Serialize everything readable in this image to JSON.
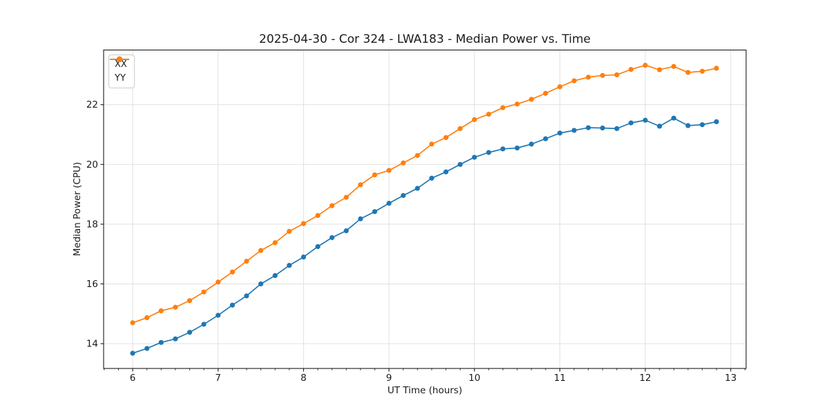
{
  "figure": {
    "background": "#ffffff",
    "spine_color": "#1a1a1a",
    "grid_color": "#e0e0e0",
    "tick_color": "#1a1a1a",
    "text_color": "#1a1a1a"
  },
  "chart_data": {
    "type": "line",
    "title": "2025-04-30 - Cor 324 - LWA183 - Median Power vs. Time",
    "xlabel": "UT Time (hours)",
    "ylabel": "Median Power (CPU)",
    "xlim": [
      5.66,
      13.18
    ],
    "ylim": [
      13.17,
      23.83
    ],
    "xticks": [
      6,
      7,
      8,
      9,
      10,
      11,
      12,
      13
    ],
    "yticks": [
      14,
      16,
      18,
      20,
      22
    ],
    "x_minor_step": 0.16667,
    "grid": true,
    "legend_position": "upper-left",
    "marker": "circle",
    "x": [
      6.0,
      6.167,
      6.333,
      6.5,
      6.667,
      6.833,
      7.0,
      7.167,
      7.333,
      7.5,
      7.667,
      7.833,
      8.0,
      8.167,
      8.333,
      8.5,
      8.667,
      8.833,
      9.0,
      9.167,
      9.333,
      9.5,
      9.667,
      9.833,
      10.0,
      10.167,
      10.333,
      10.5,
      10.667,
      10.833,
      11.0,
      11.167,
      11.333,
      11.5,
      11.667,
      11.833,
      12.0,
      12.167,
      12.333,
      12.5,
      12.667,
      12.833
    ],
    "series": [
      {
        "name": "XX",
        "color": "#1f77b4",
        "values": [
          13.68,
          13.84,
          14.04,
          14.16,
          14.38,
          14.65,
          14.95,
          15.29,
          15.6,
          16.0,
          16.28,
          16.62,
          16.9,
          17.25,
          17.55,
          17.78,
          18.18,
          18.42,
          18.7,
          18.96,
          19.2,
          19.54,
          19.75,
          20.0,
          20.24,
          20.4,
          20.52,
          20.55,
          20.68,
          20.86,
          21.05,
          21.14,
          21.23,
          21.22,
          21.2,
          21.39,
          21.48,
          21.28,
          21.55,
          21.3,
          21.33,
          21.43
        ]
      },
      {
        "name": "YY",
        "color": "#ff7f0e",
        "values": [
          14.7,
          14.87,
          15.1,
          15.22,
          15.44,
          15.73,
          16.06,
          16.4,
          16.76,
          17.12,
          17.38,
          17.76,
          18.02,
          18.29,
          18.62,
          18.9,
          19.32,
          19.65,
          19.8,
          20.05,
          20.3,
          20.68,
          20.9,
          21.2,
          21.5,
          21.68,
          21.9,
          22.02,
          22.18,
          22.38,
          22.6,
          22.8,
          22.92,
          22.98,
          23.0,
          23.18,
          23.32,
          23.17,
          23.28,
          23.08,
          23.12,
          23.22
        ]
      }
    ]
  }
}
